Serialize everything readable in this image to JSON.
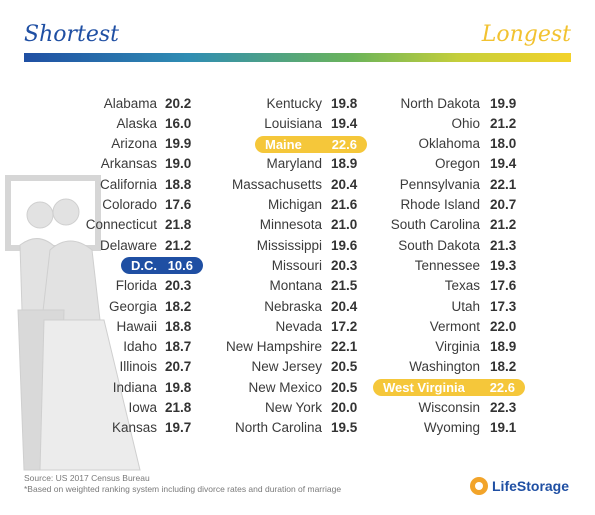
{
  "header": {
    "left": "Shortest",
    "right": "Longest"
  },
  "columns": [
    [
      {
        "state": "Alabama",
        "value": "20.2"
      },
      {
        "state": "Alaska",
        "value": "16.0"
      },
      {
        "state": "Arizona",
        "value": "19.9"
      },
      {
        "state": "Arkansas",
        "value": "19.0"
      },
      {
        "state": "California",
        "value": "18.8"
      },
      {
        "state": "Colorado",
        "value": "17.6"
      },
      {
        "state": "Connecticut",
        "value": "21.8"
      },
      {
        "state": "Delaware",
        "value": "21.2"
      },
      {
        "state": "D.C.",
        "value": "10.6",
        "highlight": "shortest"
      },
      {
        "state": "Florida",
        "value": "20.3"
      },
      {
        "state": "Georgia",
        "value": "18.2"
      },
      {
        "state": "Hawaii",
        "value": "18.8"
      },
      {
        "state": "Idaho",
        "value": "18.7"
      },
      {
        "state": "Illinois",
        "value": "20.7"
      },
      {
        "state": "Indiana",
        "value": "19.8"
      },
      {
        "state": "Iowa",
        "value": "21.8"
      },
      {
        "state": "Kansas",
        "value": "19.7"
      }
    ],
    [
      {
        "state": "Kentucky",
        "value": "19.8"
      },
      {
        "state": "Louisiana",
        "value": "19.4"
      },
      {
        "state": "Maine",
        "value": "22.6",
        "highlight": "longest"
      },
      {
        "state": "Maryland",
        "value": "18.9"
      },
      {
        "state": "Massachusetts",
        "value": "20.4"
      },
      {
        "state": "Michigan",
        "value": "21.6"
      },
      {
        "state": "Minnesota",
        "value": "21.0"
      },
      {
        "state": "Mississippi",
        "value": "19.6"
      },
      {
        "state": "Missouri",
        "value": "20.3"
      },
      {
        "state": "Montana",
        "value": "21.5"
      },
      {
        "state": "Nebraska",
        "value": "20.4"
      },
      {
        "state": "Nevada",
        "value": "17.2"
      },
      {
        "state": "New Hampshire",
        "value": "22.1"
      },
      {
        "state": "New Jersey",
        "value": "20.5"
      },
      {
        "state": "New Mexico",
        "value": "20.5"
      },
      {
        "state": "New York",
        "value": "20.0"
      },
      {
        "state": "North Carolina",
        "value": "19.5"
      }
    ],
    [
      {
        "state": "North Dakota",
        "value": "19.9"
      },
      {
        "state": "Ohio",
        "value": "21.2"
      },
      {
        "state": "Oklahoma",
        "value": "18.0"
      },
      {
        "state": "Oregon",
        "value": "19.4"
      },
      {
        "state": "Pennsylvania",
        "value": "22.1"
      },
      {
        "state": "Rhode Island",
        "value": "20.7"
      },
      {
        "state": "South Carolina",
        "value": "21.2"
      },
      {
        "state": "South Dakota",
        "value": "21.3"
      },
      {
        "state": "Tennessee",
        "value": "19.3"
      },
      {
        "state": "Texas",
        "value": "17.6"
      },
      {
        "state": "Utah",
        "value": "17.3"
      },
      {
        "state": "Vermont",
        "value": "22.0"
      },
      {
        "state": "Virginia",
        "value": "18.9"
      },
      {
        "state": "Washington",
        "value": "18.2"
      },
      {
        "state": "West Virginia",
        "value": "22.6",
        "highlight": "longest"
      },
      {
        "state": "Wisconsin",
        "value": "22.3"
      },
      {
        "state": "Wyoming",
        "value": "19.1"
      }
    ]
  ],
  "footer": {
    "source": "Source: US 2017 Census Bureau",
    "note": "*Based on weighted ranking system including divorce rates and duration of marriage",
    "logo_text": "LifeStorage"
  },
  "colors": {
    "shortest": "#1f4fa3",
    "longest": "#f5c73a"
  }
}
